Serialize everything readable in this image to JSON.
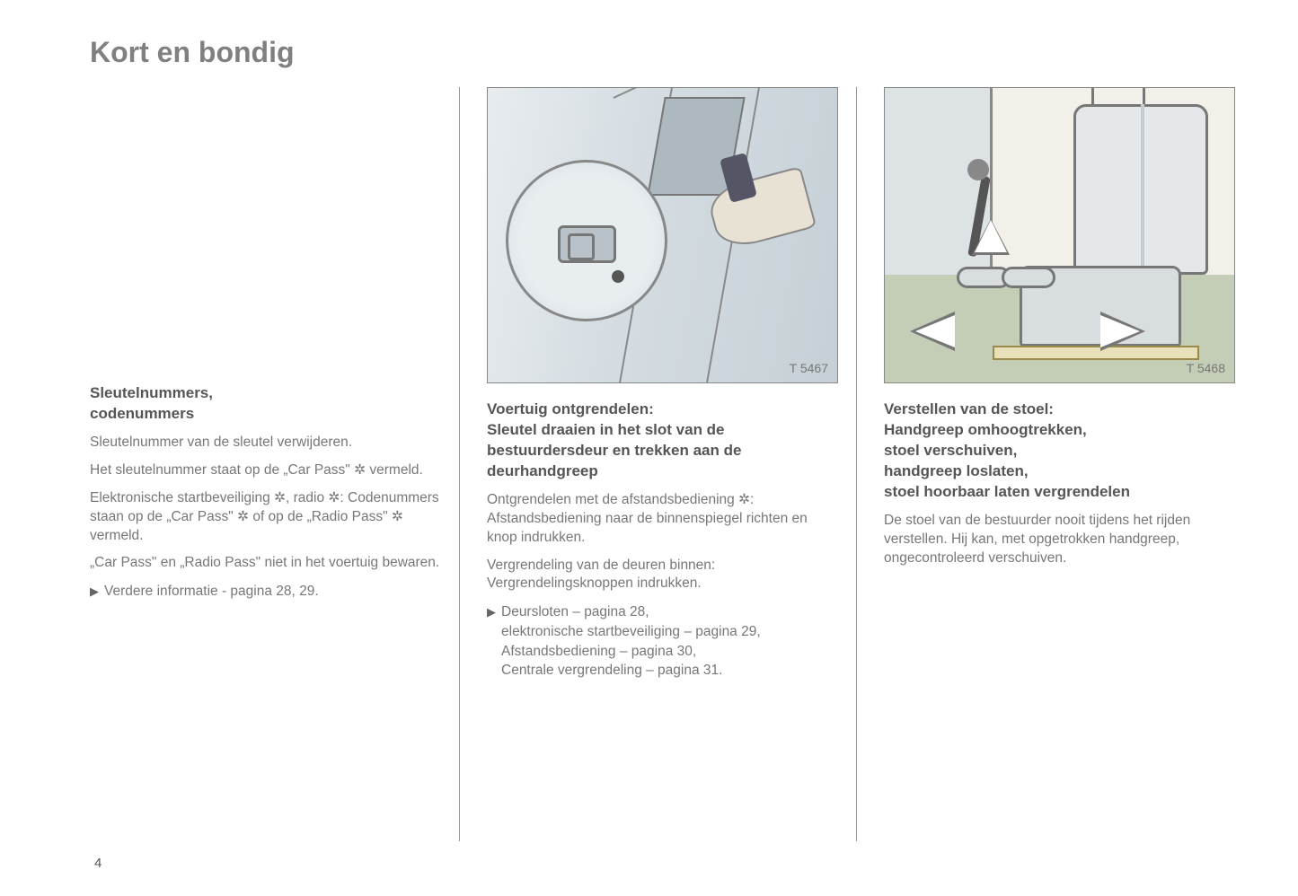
{
  "page_title": "Kort en bondig",
  "page_number": "4",
  "col1": {
    "heading": "Sleutelnummers,\ncodenummers",
    "p1": "Sleutelnummer van de sleutel verwijderen.",
    "p2": "Het sleutelnummer staat op de „Car Pass\" ✲ vermeld.",
    "p3": "Elektronische startbeveiliging ✲, radio ✲: Codenummers staan op de „Car Pass\" ✲ of op de „Radio Pass\" ✲ vermeld.",
    "p4": "„Car Pass\" en „Radio Pass\" niet in het voertuig bewaren.",
    "bullet1": "Verdere informatie - pagina 28, 29."
  },
  "col2": {
    "fig_label": "T 5467",
    "heading": "Voertuig ontgrendelen:\nSleutel draaien in het slot van de bestuurdersdeur en trekken aan de deurhandgreep",
    "p1": "Ontgrendelen met de afstandsbediening ✲: Afstandsbediening naar de binnenspiegel richten en knop indrukken.",
    "p2": "Vergrendeling van de deuren binnen: Vergrendelingsknoppen indrukken.",
    "bullet1": "Deursloten – pagina 28,\nelektronische startbeveiliging – pagina 29,\nAfstandsbediening – pagina 30,\nCentrale vergrendeling – pagina 31."
  },
  "col3": {
    "fig_label": "T 5468",
    "heading": "Verstellen van de stoel:\nHandgreep omhoogtrekken,\nstoel verschuiven,\nhandgreep loslaten,\nstoel hoorbaar laten vergrendelen",
    "p1": "De stoel van de bestuurder nooit tijdens het rijden verstellen. Hij kan, met opgetrokken handgreep, ongecontroleerd verschuiven."
  }
}
